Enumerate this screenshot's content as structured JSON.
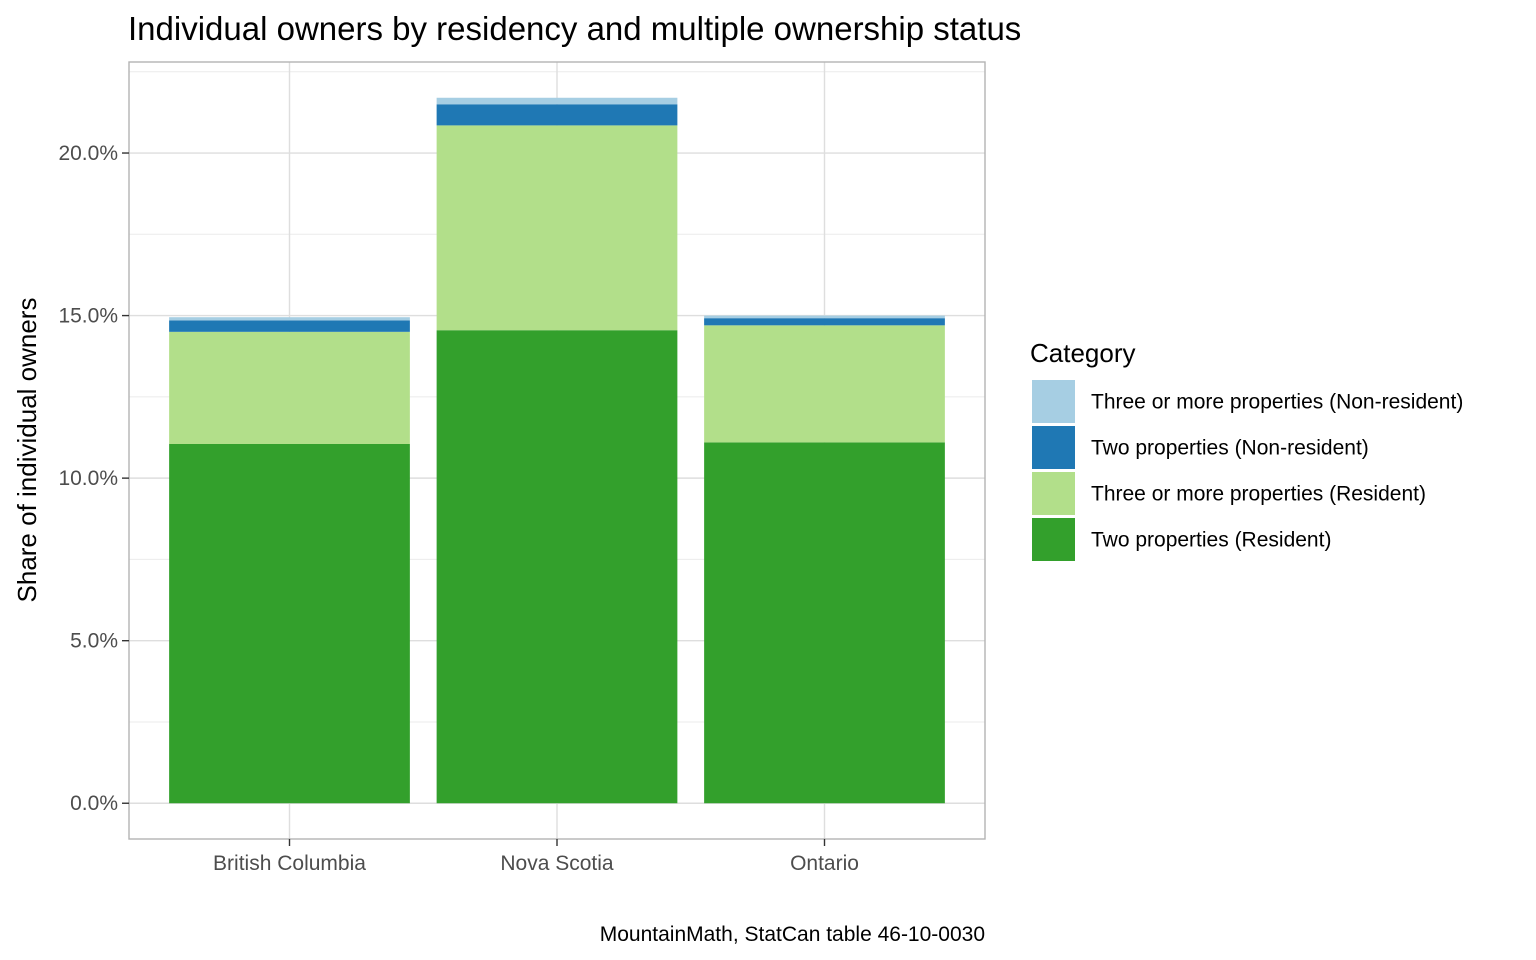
{
  "chart_data": {
    "type": "bar",
    "stacked": true,
    "title": "Individual owners by residency and multiple ownership status",
    "xlabel": "",
    "ylabel": "Share of individual owners",
    "caption": "MountainMath, StatCan table 46-10-0030",
    "categories": [
      "British Columbia",
      "Nova Scotia",
      "Ontario"
    ],
    "yticks": [
      0,
      5,
      10,
      15,
      20
    ],
    "ytick_labels": [
      "0.0%",
      "5.0%",
      "10.0%",
      "15.0%",
      "20.0%"
    ],
    "ylim": [
      -1.1,
      22.8
    ],
    "grid": true,
    "legend_title": "Category",
    "legend_position": "right",
    "series": [
      {
        "name": "Two properties (Resident)",
        "color": "#33a02c",
        "values": [
          11.05,
          14.55,
          11.1
        ]
      },
      {
        "name": "Three or more properties (Resident)",
        "color": "#b2df8a",
        "values": [
          3.45,
          6.3,
          3.6
        ]
      },
      {
        "name": "Two properties (Non-resident)",
        "color": "#1f78b4",
        "values": [
          0.35,
          0.65,
          0.22
        ]
      },
      {
        "name": "Three or more properties (Non-resident)",
        "color": "#a6cee3",
        "values": [
          0.1,
          0.2,
          0.08
        ]
      }
    ],
    "legend_order": [
      3,
      2,
      1,
      0
    ]
  }
}
